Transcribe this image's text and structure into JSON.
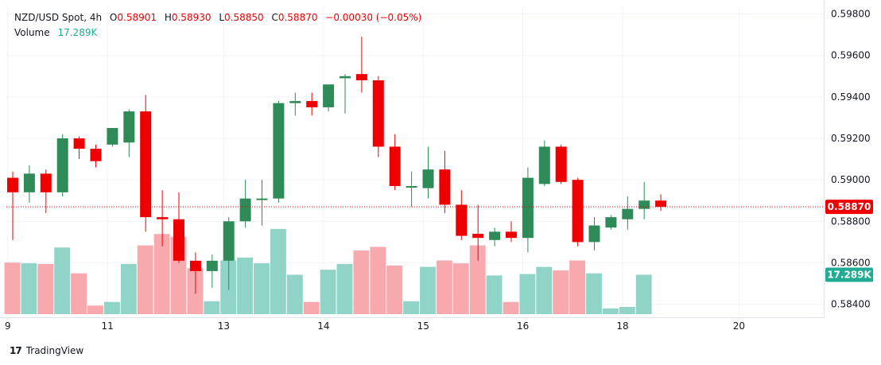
{
  "legend": {
    "symbol": "NZD/USD Spot, 4h",
    "o_label": "O",
    "o_value": "0.58901",
    "h_label": "H",
    "h_value": "0.58930",
    "l_label": "L",
    "l_value": "0.58850",
    "c_label": "C",
    "c_value": "0.58870",
    "change": "−0.00030 (−0.05%)",
    "volume_label": "Volume",
    "volume_value": "17.289K"
  },
  "brand": {
    "logo": "17",
    "name": "TradingView"
  },
  "colors": {
    "up": "#2e8b57",
    "down": "#ef0000",
    "vol_up": "#8fd4c7",
    "vol_down": "#f8a9ae",
    "price_tag": "#ef0000",
    "volume_tag": "#22ab94",
    "grid": "#f0f3fa"
  },
  "chart_data": {
    "type": "candlestick",
    "y_axis": {
      "min": 0.5832,
      "max": 0.5985,
      "ticks": [
        "0.59800",
        "0.59600",
        "0.59400",
        "0.59200",
        "0.59000",
        "0.58800",
        "0.58600",
        "0.58400"
      ]
    },
    "x_axis": {
      "ticks": [
        {
          "label": "9",
          "bar": -0.3
        },
        {
          "label": "11",
          "bar": 5.7
        },
        {
          "label": "13",
          "bar": 12.7
        },
        {
          "label": "14",
          "bar": 18.7
        },
        {
          "label": "15",
          "bar": 24.7
        },
        {
          "label": "16",
          "bar": 30.7
        },
        {
          "label": "18",
          "bar": 36.7
        },
        {
          "label": "20",
          "bar": 43.7
        }
      ]
    },
    "last_price": "0.58870",
    "last_volume": "17.289K",
    "grid": true,
    "candles": [
      {
        "o": 0.5901,
        "h": 0.5904,
        "l": 0.5871,
        "c": 0.5894,
        "v": 0.72
      },
      {
        "o": 0.5894,
        "h": 0.5907,
        "l": 0.5889,
        "c": 0.5903,
        "v": 0.71
      },
      {
        "o": 0.5903,
        "h": 0.5905,
        "l": 0.5884,
        "c": 0.5894,
        "v": 0.7
      },
      {
        "o": 0.5894,
        "h": 0.5922,
        "l": 0.5892,
        "c": 0.592,
        "v": 0.93
      },
      {
        "o": 0.592,
        "h": 0.5921,
        "l": 0.591,
        "c": 0.5915,
        "v": 0.57
      },
      {
        "o": 0.5915,
        "h": 0.5917,
        "l": 0.5906,
        "c": 0.5909,
        "v": 0.12
      },
      {
        "o": 0.5917,
        "h": 0.5925,
        "l": 0.5916,
        "c": 0.5925,
        "v": 0.17
      },
      {
        "o": 0.5918,
        "h": 0.5934,
        "l": 0.5911,
        "c": 0.5933,
        "v": 0.7
      },
      {
        "o": 0.5933,
        "h": 0.5941,
        "l": 0.5875,
        "c": 0.5882,
        "v": 0.96
      },
      {
        "o": 0.5882,
        "h": 0.5895,
        "l": 0.5868,
        "c": 0.5881,
        "v": 1.12
      },
      {
        "o": 0.5881,
        "h": 0.5894,
        "l": 0.586,
        "c": 0.5861,
        "v": 1.08
      },
      {
        "o": 0.5861,
        "h": 0.5865,
        "l": 0.5845,
        "c": 0.5856,
        "v": 0.64
      },
      {
        "o": 0.5856,
        "h": 0.5864,
        "l": 0.5848,
        "c": 0.5861,
        "v": 0.18
      },
      {
        "o": 0.5861,
        "h": 0.5882,
        "l": 0.5847,
        "c": 0.588,
        "v": 0.75
      },
      {
        "o": 0.588,
        "h": 0.59,
        "l": 0.5877,
        "c": 0.5891,
        "v": 0.79
      },
      {
        "o": 0.5891,
        "h": 0.59,
        "l": 0.5878,
        "c": 0.5891,
        "v": 0.71
      },
      {
        "o": 0.5891,
        "h": 0.5938,
        "l": 0.5889,
        "c": 0.5937,
        "v": 1.19
      },
      {
        "o": 0.5937,
        "h": 0.5942,
        "l": 0.5931,
        "c": 0.5938,
        "v": 0.55
      },
      {
        "o": 0.5938,
        "h": 0.5942,
        "l": 0.5931,
        "c": 0.5935,
        "v": 0.17
      },
      {
        "o": 0.5935,
        "h": 0.5946,
        "l": 0.5933,
        "c": 0.5946,
        "v": 0.62
      },
      {
        "o": 0.5949,
        "h": 0.5951,
        "l": 0.5932,
        "c": 0.595,
        "v": 0.7
      },
      {
        "o": 0.5951,
        "h": 0.5969,
        "l": 0.5942,
        "c": 0.5948,
        "v": 0.89
      },
      {
        "o": 0.5948,
        "h": 0.595,
        "l": 0.5911,
        "c": 0.5916,
        "v": 0.94
      },
      {
        "o": 0.5916,
        "h": 0.5922,
        "l": 0.5895,
        "c": 0.5897,
        "v": 0.68
      },
      {
        "o": 0.5897,
        "h": 0.5904,
        "l": 0.5887,
        "c": 0.5897,
        "v": 0.18
      },
      {
        "o": 0.5896,
        "h": 0.5916,
        "l": 0.5891,
        "c": 0.5905,
        "v": 0.66
      },
      {
        "o": 0.5905,
        "h": 0.5914,
        "l": 0.5884,
        "c": 0.5888,
        "v": 0.75
      },
      {
        "o": 0.5888,
        "h": 0.5895,
        "l": 0.5871,
        "c": 0.5873,
        "v": 0.71
      },
      {
        "o": 0.5874,
        "h": 0.5888,
        "l": 0.5861,
        "c": 0.5872,
        "v": 0.96
      },
      {
        "o": 0.5871,
        "h": 0.5877,
        "l": 0.5868,
        "c": 0.5875,
        "v": 0.54
      },
      {
        "o": 0.5875,
        "h": 0.588,
        "l": 0.587,
        "c": 0.5872,
        "v": 0.17
      },
      {
        "o": 0.5872,
        "h": 0.5906,
        "l": 0.5865,
        "c": 0.5901,
        "v": 0.56
      },
      {
        "o": 0.5898,
        "h": 0.5919,
        "l": 0.5897,
        "c": 0.5916,
        "v": 0.66
      },
      {
        "o": 0.5916,
        "h": 0.5917,
        "l": 0.5898,
        "c": 0.5899,
        "v": 0.61
      },
      {
        "o": 0.59,
        "h": 0.5901,
        "l": 0.5868,
        "c": 0.587,
        "v": 0.75
      },
      {
        "o": 0.587,
        "h": 0.5882,
        "l": 0.5866,
        "c": 0.5878,
        "v": 0.57
      },
      {
        "o": 0.5877,
        "h": 0.5883,
        "l": 0.5876,
        "c": 0.5882,
        "v": 0.08
      },
      {
        "o": 0.5881,
        "h": 0.5892,
        "l": 0.5876,
        "c": 0.5886,
        "v": 0.1
      },
      {
        "o": 0.5886,
        "h": 0.5899,
        "l": 0.5881,
        "c": 0.589,
        "v": 0.55
      },
      {
        "o": 0.589,
        "h": 0.5893,
        "l": 0.5885,
        "c": 0.5887,
        "v": null
      }
    ]
  }
}
